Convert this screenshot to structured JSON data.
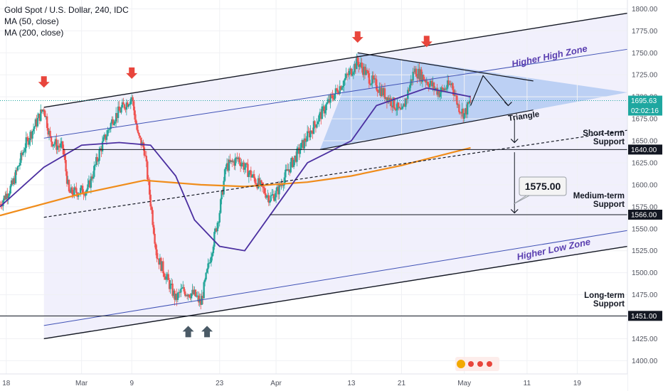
{
  "legend": {
    "title": "Gold Spot / U.S. Dollar, 240, IDC",
    "ma50": "MA (50, close)",
    "ma200": "MA (200, close)"
  },
  "colors": {
    "up": "#26a69a",
    "down": "#ef5350",
    "ma50": "#4b2fa0",
    "ma200": "#f08c1a",
    "channel_fill": "#ecebfb",
    "triangle_fill": "#a9c6f2",
    "arrow_red": "#e8453c",
    "arrow_gray": "#4a5a66",
    "price_tag": "#1ea7a0",
    "support_tag": "#131722"
  },
  "chart_data": {
    "type": "candlestick",
    "title": "Gold Spot / U.S. Dollar, 240, IDC",
    "ylim": [
      1385,
      1810
    ],
    "xlim": [
      "2020-02-17",
      "2020-05-27"
    ],
    "y_ticks": [
      1400,
      1425,
      1450,
      1475,
      1500,
      1525,
      1550,
      1575,
      1600,
      1625,
      1650,
      1675,
      1700,
      1725,
      1750,
      1775,
      1800
    ],
    "x_ticks": [
      {
        "date": "2020-02-18",
        "label": "18"
      },
      {
        "date": "2020-03-01",
        "label": "Mar"
      },
      {
        "date": "2020-03-09",
        "label": "9"
      },
      {
        "date": "2020-03-23",
        "label": "23"
      },
      {
        "date": "2020-04-01",
        "label": "Apr"
      },
      {
        "date": "2020-04-13",
        "label": "13"
      },
      {
        "date": "2020-04-21",
        "label": "21"
      },
      {
        "date": "2020-05-01",
        "label": "May"
      },
      {
        "date": "2020-05-11",
        "label": "11"
      },
      {
        "date": "2020-05-19",
        "label": "19"
      }
    ],
    "price_path": [
      [
        "2020-02-17",
        1578
      ],
      [
        "2020-02-19",
        1600
      ],
      [
        "2020-02-21",
        1645
      ],
      [
        "2020-02-24",
        1688
      ],
      [
        "2020-02-25",
        1652
      ],
      [
        "2020-02-26",
        1645
      ],
      [
        "2020-02-27",
        1642
      ],
      [
        "2020-02-28",
        1590
      ],
      [
        "2020-03-02",
        1595
      ],
      [
        "2020-03-04",
        1640
      ],
      [
        "2020-03-06",
        1675
      ],
      [
        "2020-03-09",
        1700
      ],
      [
        "2020-03-10",
        1655
      ],
      [
        "2020-03-11",
        1640
      ],
      [
        "2020-03-12",
        1580
      ],
      [
        "2020-03-13",
        1520
      ],
      [
        "2020-03-16",
        1470
      ],
      [
        "2020-03-17",
        1480
      ],
      [
        "2020-03-19",
        1475
      ],
      [
        "2020-03-20",
        1465
      ],
      [
        "2020-03-23",
        1570
      ],
      [
        "2020-03-24",
        1620
      ],
      [
        "2020-03-26",
        1630
      ],
      [
        "2020-03-27",
        1620
      ],
      [
        "2020-03-31",
        1585
      ],
      [
        "2020-04-01",
        1590
      ],
      [
        "2020-04-03",
        1618
      ],
      [
        "2020-04-06",
        1655
      ],
      [
        "2020-04-09",
        1690
      ],
      [
        "2020-04-13",
        1730
      ],
      [
        "2020-04-14",
        1740
      ],
      [
        "2020-04-16",
        1720
      ],
      [
        "2020-04-20",
        1690
      ],
      [
        "2020-04-21",
        1680
      ],
      [
        "2020-04-23",
        1730
      ],
      [
        "2020-04-24",
        1725
      ],
      [
        "2020-04-27",
        1705
      ],
      [
        "2020-04-29",
        1715
      ],
      [
        "2020-04-30",
        1690
      ],
      [
        "2020-05-01",
        1680
      ],
      [
        "2020-05-02",
        1695.63
      ]
    ],
    "ma50_path": [
      [
        "2020-02-17",
        1575
      ],
      [
        "2020-02-24",
        1620
      ],
      [
        "2020-03-01",
        1645
      ],
      [
        "2020-03-07",
        1648
      ],
      [
        "2020-03-12",
        1645
      ],
      [
        "2020-03-16",
        1610
      ],
      [
        "2020-03-19",
        1560
      ],
      [
        "2020-03-23",
        1530
      ],
      [
        "2020-03-27",
        1525
      ],
      [
        "2020-04-01",
        1575
      ],
      [
        "2020-04-06",
        1625
      ],
      [
        "2020-04-13",
        1650
      ],
      [
        "2020-04-17",
        1690
      ],
      [
        "2020-04-21",
        1700
      ],
      [
        "2020-04-25",
        1710
      ],
      [
        "2020-05-02",
        1700
      ]
    ],
    "ma200_path": [
      [
        "2020-02-17",
        1565
      ],
      [
        "2020-03-01",
        1590
      ],
      [
        "2020-03-11",
        1605
      ],
      [
        "2020-03-20",
        1600
      ],
      [
        "2020-03-27",
        1598
      ],
      [
        "2020-04-06",
        1603
      ],
      [
        "2020-04-13",
        1610
      ],
      [
        "2020-04-21",
        1622
      ],
      [
        "2020-05-02",
        1642
      ]
    ],
    "current_price": {
      "value": 1695.63,
      "label": "1695.63",
      "countdown": "02:02:16"
    },
    "supports": [
      {
        "name": "short-term",
        "value": 1640,
        "label": "1640.00",
        "text": [
          "Short-term",
          "Support"
        ]
      },
      {
        "name": "medium-term",
        "value": 1566,
        "label": "1566.00",
        "text": [
          "Medium-term",
          "Support"
        ]
      },
      {
        "name": "long-term",
        "value": 1451,
        "label": "1451.00",
        "text": [
          "Long-term",
          "Support"
        ]
      }
    ],
    "target_callout": "1575.00",
    "zones": {
      "higher_high": "Higher High Zone",
      "higher_low": "Higher Low Zone"
    },
    "triangle_label": "Triangle",
    "down_arrows_at": [
      [
        "2020-02-24",
        1712
      ],
      [
        "2020-03-09",
        1722
      ],
      [
        "2020-04-14",
        1763
      ],
      [
        "2020-04-25",
        1758
      ]
    ],
    "up_arrows_at": [
      [
        "2020-03-18",
        1438
      ],
      [
        "2020-03-21",
        1438
      ]
    ],
    "channel": {
      "top": [
        [
          "2020-02-24",
          1688
        ],
        [
          "2020-05-27",
          1795
        ]
      ],
      "bottom": [
        [
          "2020-02-24",
          1425
        ],
        [
          "2020-05-27",
          1530
        ]
      ],
      "inner_top": [
        [
          "2020-02-24",
          1653
        ],
        [
          "2020-05-27",
          1754
        ]
      ],
      "inner_bottom": [
        [
          "2020-02-24",
          1440
        ],
        [
          "2020-05-27",
          1548
        ]
      ],
      "mid_dashed": [
        [
          "2020-02-24",
          1563
        ],
        [
          "2020-05-27",
          1662
        ]
      ]
    }
  }
}
